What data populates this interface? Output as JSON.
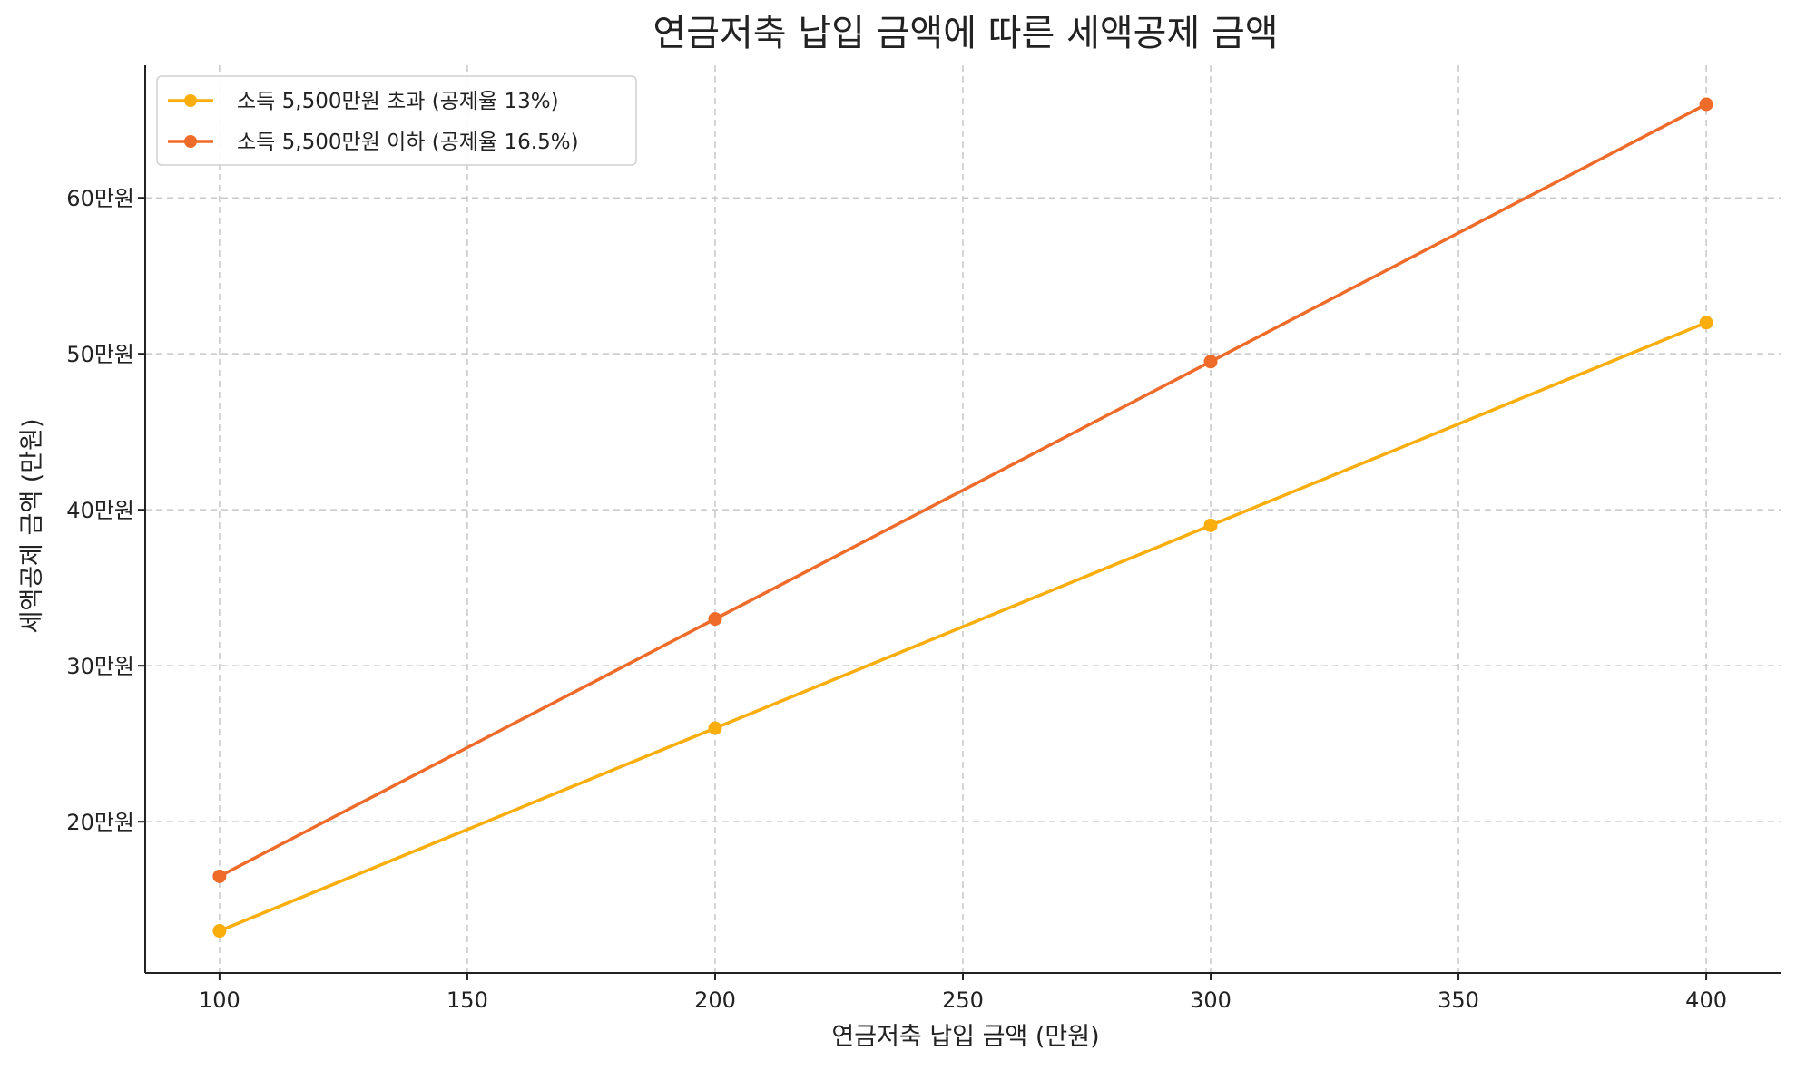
{
  "chart_data": {
    "type": "line",
    "title": "연금저축 납입 금액에 따른 세액공제 금액",
    "xlabel": "연금저축 납입 금액 (만원)",
    "ylabel": "세액공제 금액 (만원)",
    "x": [
      100,
      200,
      300,
      400
    ],
    "xlim": [
      85,
      415
    ],
    "ylim": [
      10.3,
      68.5
    ],
    "xticks": [
      100,
      150,
      200,
      250,
      300,
      350,
      400
    ],
    "xtick_labels": [
      "100",
      "150",
      "200",
      "250",
      "300",
      "350",
      "400"
    ],
    "yticks": [
      20,
      30,
      40,
      50,
      60
    ],
    "ytick_labels": [
      "20만원",
      "30만원",
      "40만원",
      "50만원",
      "60만원"
    ],
    "grid": true,
    "legend_position": "top-left",
    "series": [
      {
        "name": "소득 5,500만원 초과 (공제율 13%)",
        "values": [
          13,
          26,
          39,
          52
        ],
        "color": "#F9AE0E"
      },
      {
        "name": "소득 5,500만원 이하 (공제율 16.5%)",
        "values": [
          16.5,
          33,
          49.5,
          66
        ],
        "color": "#EE6B2A"
      }
    ]
  }
}
